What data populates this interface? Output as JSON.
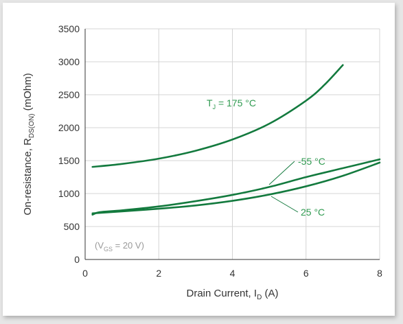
{
  "chart_data": {
    "type": "line",
    "xlabel": {
      "main": "Drain Current, I",
      "sub": "D",
      "unit": " (A)"
    },
    "ylabel": {
      "main": "On-resistance, R",
      "sub": "DS(ON)",
      "unit": " (mOhm)"
    },
    "xlim": [
      0,
      8
    ],
    "ylim": [
      0,
      3500
    ],
    "xticks": [
      0,
      2,
      4,
      6,
      8
    ],
    "yticks": [
      0,
      500,
      1000,
      1500,
      2000,
      2500,
      3000,
      3500
    ],
    "grid": true,
    "series": [
      {
        "name": "T_J = 175 °C",
        "values": [
          [
            0.2,
            1405
          ],
          [
            1,
            1450
          ],
          [
            2,
            1530
          ],
          [
            3,
            1650
          ],
          [
            4,
            1820
          ],
          [
            5,
            2060
          ],
          [
            6,
            2410
          ],
          [
            6.5,
            2650
          ],
          [
            7,
            2950
          ]
        ]
      },
      {
        "name": "-55 °C",
        "values": [
          [
            0.2,
            680
          ],
          [
            0.4,
            718
          ],
          [
            1,
            745
          ],
          [
            2,
            805
          ],
          [
            3,
            885
          ],
          [
            4,
            980
          ],
          [
            5,
            1100
          ],
          [
            6,
            1250
          ],
          [
            7,
            1385
          ],
          [
            8,
            1520
          ]
        ]
      },
      {
        "name": "25 °C",
        "values": [
          [
            0.2,
            700
          ],
          [
            1,
            730
          ],
          [
            2,
            770
          ],
          [
            3,
            820
          ],
          [
            4,
            890
          ],
          [
            5,
            985
          ],
          [
            6,
            1110
          ],
          [
            7,
            1270
          ],
          [
            8,
            1470
          ]
        ]
      }
    ],
    "annotations": {
      "t175": {
        "main": "T",
        "sub": "J",
        "rest": " = 175 °C"
      },
      "m55": "-55 °C",
      "p25": "25 °C",
      "cond": {
        "open": "(V",
        "sub": "GS",
        "rest": " = 20 V)"
      }
    },
    "colors": {
      "line": "#137a3e",
      "label": "#2f9a50",
      "grid": "#d4d4d4",
      "axis": "#333333",
      "cond": "#999999"
    }
  }
}
